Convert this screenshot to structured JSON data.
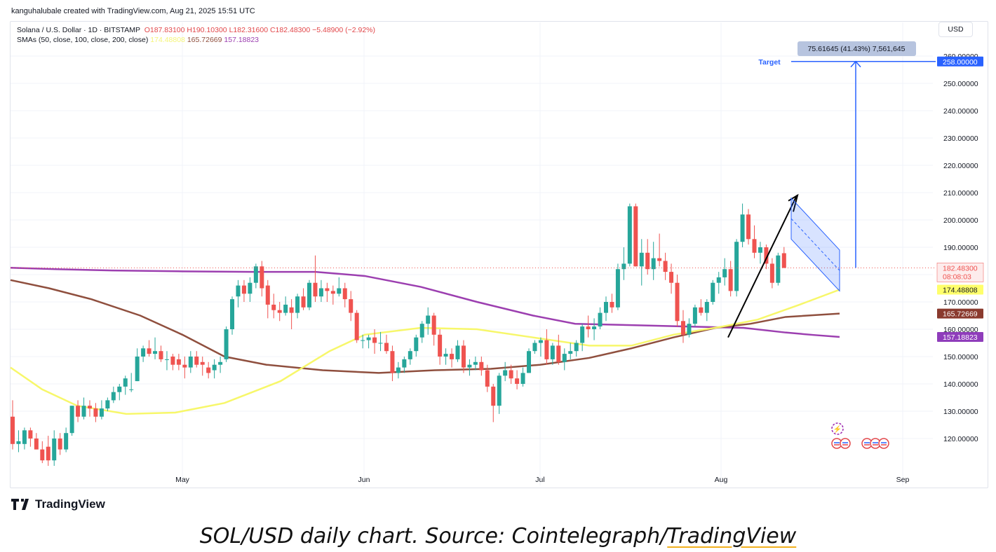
{
  "header": {
    "credit": "kanguhalubale created with TradingView.com, Aug 21, 2025 15:51 UTC",
    "symbol": "Solana / U.S. Dollar · 1D · BITSTAMP",
    "open": "O187.83100",
    "high": "H190.10300",
    "low": "L182.31600",
    "close": "C182.48300",
    "change": "−5.48900 (−2.92%)",
    "sma_label": "SMAs (50, close, 100, close, 200, close)",
    "sma50_value": "174.48808",
    "sma100_value": "165.72669",
    "sma200_value": "157.18823",
    "currency_button": "USD"
  },
  "annotations": {
    "target_label": "Target",
    "measure_label": "75.61645 (41.43%) 7,561,645"
  },
  "price_tags": {
    "target": "258.00000",
    "last": "182.48300",
    "countdown": "08:08:03",
    "sma50": "174.48808",
    "sma100": "165.72669",
    "sma200": "157.18823"
  },
  "colors": {
    "up": "#26a69a",
    "down": "#ef5350",
    "sma50": "#ffff6b",
    "sma100": "#8f4f3e",
    "sma200": "#9c3fb0",
    "target": "#2962ff"
  },
  "footer": {
    "logo_text": "TradingView",
    "caption_main": "SOL/USD daily chart. Source: Cointelegraph/",
    "caption_link": "TradingView"
  },
  "chart_data": {
    "type": "candlestick",
    "y_axis_ticks": [
      120,
      130,
      140,
      150,
      160,
      170,
      180,
      190,
      200,
      210,
      220,
      230,
      240,
      250,
      260
    ],
    "y_axis_tick_labels": [
      "120.00000",
      "130.00000",
      "140.00000",
      "150.00000",
      "160.00000",
      "170.00000",
      "180.00000",
      "190.00000",
      "200.00000",
      "210.00000",
      "220.00000",
      "230.00000",
      "240.00000",
      "250.00000",
      "260.00000"
    ],
    "x_axis_labels": [
      "May",
      "Jun",
      "Jul",
      "Aug",
      "Sep"
    ],
    "candles": [
      {
        "d": "Apr 1",
        "o": 128,
        "h": 134,
        "l": 116,
        "c": 118
      },
      {
        "d": "Apr 2",
        "o": 118,
        "h": 123,
        "l": 115,
        "c": 119
      },
      {
        "d": "Apr 3",
        "o": 118,
        "h": 124,
        "l": 116,
        "c": 123
      },
      {
        "d": "Apr 4",
        "o": 123,
        "h": 124,
        "l": 117,
        "c": 120
      },
      {
        "d": "Apr 5",
        "o": 120,
        "h": 122,
        "l": 116,
        "c": 116
      },
      {
        "d": "Apr 7",
        "o": 116,
        "h": 119,
        "l": 111,
        "c": 112
      },
      {
        "d": "Apr 8",
        "o": 117,
        "h": 121,
        "l": 110,
        "c": 112
      },
      {
        "d": "Apr 9",
        "o": 112,
        "h": 123,
        "l": 110,
        "c": 120
      },
      {
        "d": "Apr 10",
        "o": 120,
        "h": 122,
        "l": 114,
        "c": 116
      },
      {
        "d": "Apr 11",
        "o": 116,
        "h": 124,
        "l": 115,
        "c": 122
      },
      {
        "d": "Apr 12",
        "o": 122,
        "h": 132,
        "l": 121,
        "c": 132
      },
      {
        "d": "Apr 13",
        "o": 132,
        "h": 134,
        "l": 126,
        "c": 128
      },
      {
        "d": "Apr 14",
        "o": 128,
        "h": 135,
        "l": 127,
        "c": 132
      },
      {
        "d": "Apr 15",
        "o": 132,
        "h": 134,
        "l": 128,
        "c": 131
      },
      {
        "d": "Apr 16",
        "o": 131,
        "h": 133,
        "l": 126,
        "c": 128
      },
      {
        "d": "Apr 17",
        "o": 128,
        "h": 134,
        "l": 127,
        "c": 131
      },
      {
        "d": "Apr 18",
        "o": 131,
        "h": 135,
        "l": 130,
        "c": 134
      },
      {
        "d": "Apr 19",
        "o": 134,
        "h": 139,
        "l": 133,
        "c": 137
      },
      {
        "d": "Apr 20",
        "o": 137,
        "h": 140,
        "l": 134,
        "c": 139
      },
      {
        "d": "Apr 21",
        "o": 139,
        "h": 143,
        "l": 136,
        "c": 142
      },
      {
        "d": "Apr 22",
        "o": 138,
        "h": 144,
        "l": 137,
        "c": 138
      },
      {
        "d": "Apr 23",
        "o": 141,
        "h": 153,
        "l": 141,
        "c": 150
      },
      {
        "d": "Apr 24",
        "o": 150,
        "h": 154,
        "l": 148,
        "c": 153
      },
      {
        "d": "Apr 25",
        "o": 153,
        "h": 156,
        "l": 150,
        "c": 151
      },
      {
        "d": "Apr 26",
        "o": 151,
        "h": 157,
        "l": 149,
        "c": 152
      },
      {
        "d": "Apr 27",
        "o": 152,
        "h": 154,
        "l": 148,
        "c": 149
      },
      {
        "d": "Apr 28",
        "o": 149,
        "h": 152,
        "l": 145,
        "c": 149
      },
      {
        "d": "Apr 29",
        "o": 150,
        "h": 151,
        "l": 145,
        "c": 147
      },
      {
        "d": "Apr 30",
        "o": 149,
        "h": 151,
        "l": 145,
        "c": 147
      },
      {
        "d": "May 1",
        "o": 147,
        "h": 150,
        "l": 142,
        "c": 146
      },
      {
        "d": "May 2",
        "o": 146,
        "h": 152,
        "l": 144,
        "c": 150
      },
      {
        "d": "May 3",
        "o": 150,
        "h": 152,
        "l": 146,
        "c": 147
      },
      {
        "d": "May 4",
        "o": 148,
        "h": 150,
        "l": 143,
        "c": 147
      },
      {
        "d": "May 5",
        "o": 146,
        "h": 148,
        "l": 142,
        "c": 144
      },
      {
        "d": "May 6",
        "o": 145,
        "h": 149,
        "l": 142,
        "c": 147
      },
      {
        "d": "May 7",
        "o": 147,
        "h": 150,
        "l": 144,
        "c": 148
      },
      {
        "d": "May 8",
        "o": 149,
        "h": 161,
        "l": 148,
        "c": 160
      },
      {
        "d": "May 9",
        "o": 160,
        "h": 172,
        "l": 158,
        "c": 171
      },
      {
        "d": "May 10",
        "o": 172,
        "h": 178,
        "l": 168,
        "c": 176
      },
      {
        "d": "May 11",
        "o": 176,
        "h": 178,
        "l": 170,
        "c": 173
      },
      {
        "d": "May 12",
        "o": 173,
        "h": 179,
        "l": 170,
        "c": 177
      },
      {
        "d": "May 13",
        "o": 177,
        "h": 184,
        "l": 175,
        "c": 183
      },
      {
        "d": "May 14",
        "o": 183,
        "h": 185,
        "l": 172,
        "c": 175
      },
      {
        "d": "May 15",
        "o": 176,
        "h": 178,
        "l": 164,
        "c": 169
      },
      {
        "d": "May 16",
        "o": 169,
        "h": 173,
        "l": 164,
        "c": 167
      },
      {
        "d": "May 17",
        "o": 167,
        "h": 170,
        "l": 163,
        "c": 166
      },
      {
        "d": "May 18",
        "o": 166,
        "h": 172,
        "l": 165,
        "c": 169
      },
      {
        "d": "May 19",
        "o": 168,
        "h": 171,
        "l": 160,
        "c": 166
      },
      {
        "d": "May 20",
        "o": 166,
        "h": 173,
        "l": 164,
        "c": 172
      },
      {
        "d": "May 21",
        "o": 172,
        "h": 175,
        "l": 167,
        "c": 168
      },
      {
        "d": "May 22",
        "o": 168,
        "h": 178,
        "l": 167,
        "c": 177
      },
      {
        "d": "May 23",
        "o": 177,
        "h": 187,
        "l": 170,
        "c": 172
      },
      {
        "d": "May 24",
        "o": 172,
        "h": 178,
        "l": 170,
        "c": 175
      },
      {
        "d": "May 25",
        "o": 175,
        "h": 177,
        "l": 170,
        "c": 174
      },
      {
        "d": "May 26",
        "o": 174,
        "h": 176,
        "l": 169,
        "c": 173
      },
      {
        "d": "May 27",
        "o": 173,
        "h": 179,
        "l": 172,
        "c": 175
      },
      {
        "d": "May 28",
        "o": 175,
        "h": 177,
        "l": 168,
        "c": 171
      },
      {
        "d": "May 29",
        "o": 171,
        "h": 174,
        "l": 163,
        "c": 166
      },
      {
        "d": "May 30",
        "o": 166,
        "h": 167,
        "l": 155,
        "c": 156
      },
      {
        "d": "May 31",
        "o": 156,
        "h": 158,
        "l": 153,
        "c": 156
      },
      {
        "d": "Jun 1",
        "o": 156,
        "h": 158,
        "l": 153,
        "c": 157
      },
      {
        "d": "Jun 2",
        "o": 157,
        "h": 160,
        "l": 151,
        "c": 155
      },
      {
        "d": "Jun 3",
        "o": 155,
        "h": 159,
        "l": 152,
        "c": 155
      },
      {
        "d": "Jun 4",
        "o": 155,
        "h": 158,
        "l": 151,
        "c": 152
      },
      {
        "d": "Jun 5",
        "o": 152,
        "h": 154,
        "l": 141,
        "c": 144
      },
      {
        "d": "Jun 6",
        "o": 144,
        "h": 148,
        "l": 142,
        "c": 146
      },
      {
        "d": "Jun 7",
        "o": 146,
        "h": 150,
        "l": 144,
        "c": 149
      },
      {
        "d": "Jun 8",
        "o": 149,
        "h": 153,
        "l": 147,
        "c": 152
      },
      {
        "d": "Jun 9",
        "o": 152,
        "h": 158,
        "l": 150,
        "c": 157
      },
      {
        "d": "Jun 10",
        "o": 157,
        "h": 163,
        "l": 155,
        "c": 162
      },
      {
        "d": "Jun 11",
        "o": 162,
        "h": 168,
        "l": 158,
        "c": 165
      },
      {
        "d": "Jun 12",
        "o": 165,
        "h": 166,
        "l": 154,
        "c": 158
      },
      {
        "d": "Jun 13",
        "o": 158,
        "h": 160,
        "l": 147,
        "c": 150
      },
      {
        "d": "Jun 14",
        "o": 150,
        "h": 153,
        "l": 147,
        "c": 151
      },
      {
        "d": "Jun 15",
        "o": 151,
        "h": 153,
        "l": 146,
        "c": 149
      },
      {
        "d": "Jun 16",
        "o": 149,
        "h": 156,
        "l": 148,
        "c": 154
      },
      {
        "d": "Jun 17",
        "o": 154,
        "h": 156,
        "l": 144,
        "c": 146
      },
      {
        "d": "Jun 18",
        "o": 146,
        "h": 149,
        "l": 143,
        "c": 147
      },
      {
        "d": "Jun 19",
        "o": 147,
        "h": 150,
        "l": 145,
        "c": 148
      },
      {
        "d": "Jun 20",
        "o": 148,
        "h": 150,
        "l": 143,
        "c": 145
      },
      {
        "d": "Jun 21",
        "o": 145,
        "h": 147,
        "l": 137,
        "c": 139
      },
      {
        "d": "Jun 22",
        "o": 139,
        "h": 140,
        "l": 126,
        "c": 132
      },
      {
        "d": "Jun 23",
        "o": 132,
        "h": 144,
        "l": 129,
        "c": 143
      },
      {
        "d": "Jun 24",
        "o": 143,
        "h": 148,
        "l": 141,
        "c": 145
      },
      {
        "d": "Jun 25",
        "o": 145,
        "h": 147,
        "l": 140,
        "c": 142
      },
      {
        "d": "Jun 26",
        "o": 142,
        "h": 145,
        "l": 138,
        "c": 140
      },
      {
        "d": "Jun 27",
        "o": 140,
        "h": 146,
        "l": 139,
        "c": 144
      },
      {
        "d": "Jun 28",
        "o": 144,
        "h": 153,
        "l": 144,
        "c": 152
      },
      {
        "d": "Jun 29",
        "o": 152,
        "h": 156,
        "l": 151,
        "c": 155
      },
      {
        "d": "Jun 30",
        "o": 155,
        "h": 157,
        "l": 150,
        "c": 156
      },
      {
        "d": "Jul 1",
        "o": 156,
        "h": 160,
        "l": 147,
        "c": 149
      },
      {
        "d": "Jul 2",
        "o": 149,
        "h": 155,
        "l": 147,
        "c": 154
      },
      {
        "d": "Jul 3",
        "o": 154,
        "h": 158,
        "l": 147,
        "c": 148
      },
      {
        "d": "Jul 4",
        "o": 148,
        "h": 153,
        "l": 145,
        "c": 151
      },
      {
        "d": "Jul 5",
        "o": 151,
        "h": 155,
        "l": 149,
        "c": 152
      },
      {
        "d": "Jul 6",
        "o": 152,
        "h": 156,
        "l": 150,
        "c": 155
      },
      {
        "d": "Jul 7",
        "o": 155,
        "h": 162,
        "l": 152,
        "c": 161
      },
      {
        "d": "Jul 8",
        "o": 161,
        "h": 165,
        "l": 157,
        "c": 160
      },
      {
        "d": "Jul 9",
        "o": 160,
        "h": 164,
        "l": 156,
        "c": 161
      },
      {
        "d": "Jul 10",
        "o": 161,
        "h": 168,
        "l": 160,
        "c": 166
      },
      {
        "d": "Jul 11",
        "o": 166,
        "h": 172,
        "l": 163,
        "c": 170
      },
      {
        "d": "Jul 12",
        "o": 170,
        "h": 173,
        "l": 166,
        "c": 168
      },
      {
        "d": "Jul 13",
        "o": 168,
        "h": 184,
        "l": 167,
        "c": 182
      },
      {
        "d": "Jul 14",
        "o": 182,
        "h": 190,
        "l": 178,
        "c": 184
      },
      {
        "d": "Jul 15",
        "o": 184,
        "h": 206,
        "l": 183,
        "c": 205
      },
      {
        "d": "Jul 16",
        "o": 205,
        "h": 206,
        "l": 183,
        "c": 183
      },
      {
        "d": "Jul 17",
        "o": 183,
        "h": 193,
        "l": 176,
        "c": 188
      },
      {
        "d": "Jul 18",
        "o": 188,
        "h": 193,
        "l": 180,
        "c": 182
      },
      {
        "d": "Jul 19",
        "o": 182,
        "h": 192,
        "l": 178,
        "c": 186
      },
      {
        "d": "Jul 20",
        "o": 186,
        "h": 195,
        "l": 183,
        "c": 185
      },
      {
        "d": "Jul 21",
        "o": 185,
        "h": 188,
        "l": 178,
        "c": 181
      },
      {
        "d": "Jul 22",
        "o": 181,
        "h": 184,
        "l": 173,
        "c": 177
      },
      {
        "d": "Jul 23",
        "o": 177,
        "h": 180,
        "l": 161,
        "c": 163
      },
      {
        "d": "Jul 24",
        "o": 163,
        "h": 167,
        "l": 155,
        "c": 158
      },
      {
        "d": "Jul 25",
        "o": 158,
        "h": 164,
        "l": 157,
        "c": 162
      },
      {
        "d": "Jul 26",
        "o": 162,
        "h": 169,
        "l": 161,
        "c": 168
      },
      {
        "d": "Jul 27",
        "o": 168,
        "h": 171,
        "l": 165,
        "c": 166
      },
      {
        "d": "Jul 28",
        "o": 166,
        "h": 171,
        "l": 163,
        "c": 170
      },
      {
        "d": "Jul 29",
        "o": 170,
        "h": 178,
        "l": 169,
        "c": 177
      },
      {
        "d": "Jul 30",
        "o": 177,
        "h": 181,
        "l": 173,
        "c": 179
      },
      {
        "d": "Jul 31",
        "o": 179,
        "h": 186,
        "l": 176,
        "c": 182
      },
      {
        "d": "Aug 1",
        "o": 182,
        "h": 185,
        "l": 172,
        "c": 174
      },
      {
        "d": "Aug 2",
        "o": 174,
        "h": 193,
        "l": 172,
        "c": 192
      },
      {
        "d": "Aug 3",
        "o": 192,
        "h": 206,
        "l": 190,
        "c": 202
      },
      {
        "d": "Aug 4",
        "o": 202,
        "h": 204,
        "l": 191,
        "c": 193
      },
      {
        "d": "Aug 5",
        "o": 193,
        "h": 198,
        "l": 186,
        "c": 188
      },
      {
        "d": "Aug 6",
        "o": 188,
        "h": 192,
        "l": 184,
        "c": 190
      },
      {
        "d": "Aug 7",
        "o": 190,
        "h": 191,
        "l": 182,
        "c": 184
      },
      {
        "d": "Aug 8",
        "o": 184,
        "h": 186,
        "l": 175,
        "c": 177
      },
      {
        "d": "Aug 9",
        "o": 177,
        "h": 188,
        "l": 176,
        "c": 187
      },
      {
        "d": "Aug 10",
        "o": 187.83,
        "h": 190.103,
        "l": 182.316,
        "c": 182.483
      }
    ],
    "sma_series": [
      {
        "name": "SMA 50",
        "current": 174.48808
      },
      {
        "name": "SMA 100",
        "current": 165.72669
      },
      {
        "name": "SMA 200",
        "current": 157.18823
      }
    ],
    "target": 258,
    "measure_change": 75.61645,
    "measure_percent": 41.43,
    "grid": true,
    "legend_position": "top-left"
  }
}
